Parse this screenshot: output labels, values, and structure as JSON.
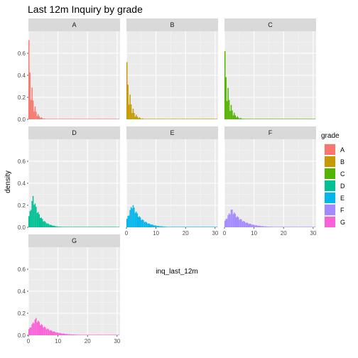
{
  "chart_data": {
    "type": "histogram-facet",
    "title": "Last 12m Inquiry by grade",
    "xlabel": "inq_last_12m",
    "ylabel": "density",
    "xlim": [
      0,
      31
    ],
    "ylim": [
      0,
      0.8
    ],
    "x_ticks": [
      0,
      10,
      20,
      30
    ],
    "y_ticks": [
      0.0,
      0.2,
      0.4,
      0.6
    ],
    "grid": true,
    "legend": {
      "title": "grade",
      "position": "right",
      "entries": [
        "A",
        "B",
        "C",
        "D",
        "E",
        "F",
        "G"
      ]
    },
    "facets": [
      {
        "name": "A",
        "color": "#F8766D",
        "peak": 0.72,
        "decay": 1.15
      },
      {
        "name": "B",
        "color": "#C49A00",
        "peak": 0.52,
        "decay": 1.25
      },
      {
        "name": "C",
        "color": "#53B400",
        "peak": 0.62,
        "decay": 1.35
      },
      {
        "name": "D",
        "color": "#00C094",
        "peak": 0.29,
        "decay": 2.0
      },
      {
        "name": "E",
        "color": "#00B6EB",
        "peak": 0.22,
        "decay": 2.6
      },
      {
        "name": "F",
        "color": "#A58AFF",
        "peak": 0.17,
        "decay": 3.2
      },
      {
        "name": "G",
        "color": "#FB61D7",
        "peak": 0.16,
        "decay": 3.4
      }
    ]
  }
}
